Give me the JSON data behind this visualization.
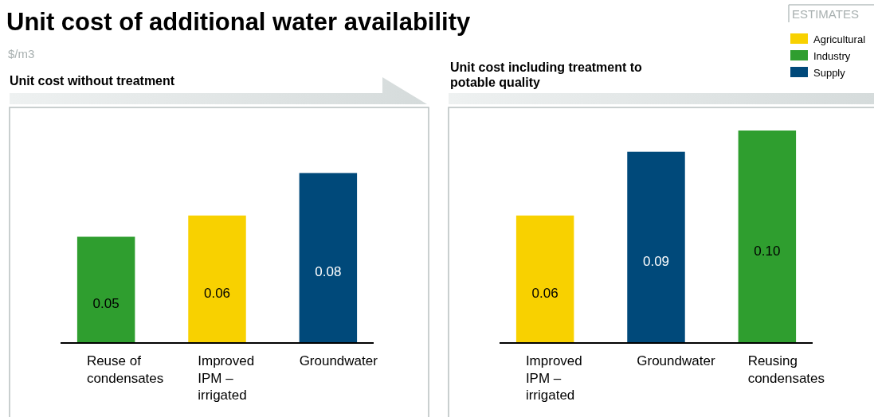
{
  "chart_data": [
    {
      "type": "other",
      "title": "Unit cost of additional water availability",
      "subtitle": "$/m3",
      "annotations": [
        "ESTIMATES"
      ]
    },
    {
      "type": "bar",
      "title": "Unit cost without treatment",
      "categories": [
        "Reuse of condensates",
        "Improved IPM – irrigated",
        "Groundwater"
      ],
      "tick_labels": "x",
      "data_labels": true,
      "legend": false,
      "series": [
        {
          "color": "#f8d100",
          "values": [
            null,
            0.06,
            null
          ],
          "value_labels": [
            null,
            "0.06",
            null
          ]
        },
        {
          "color": "#2f9e2f",
          "values": [
            0.05,
            null,
            null
          ],
          "value_labels": [
            "0.05",
            null,
            null
          ]
        },
        {
          "color": "#00497a",
          "values": [
            null,
            null,
            0.08
          ],
          "value_labels": [
            null,
            null,
            "0.08"
          ]
        }
      ]
    },
    {
      "type": "bar",
      "title": "Unit cost including treatment to potable quality",
      "categories": [
        "Improved IPM – irrigated",
        "Groundwater",
        "Reusing condensates"
      ],
      "tick_labels": "x",
      "data_labels": true,
      "legend": "top right",
      "series": [
        {
          "name": "Agricultural",
          "color": "#f8d100",
          "values": [
            0.06,
            null,
            null
          ],
          "value_labels": [
            "0.06",
            null,
            null
          ]
        },
        {
          "name": "Industry",
          "color": "#2f9e2f",
          "values": [
            null,
            null,
            0.1
          ],
          "value_labels": [
            null,
            null,
            "0.10"
          ]
        },
        {
          "name": "Supply",
          "color": "#00497a",
          "values": [
            null,
            0.09,
            null
          ],
          "value_labels": [
            null,
            "0.09",
            null
          ]
        }
      ]
    }
  ]
}
